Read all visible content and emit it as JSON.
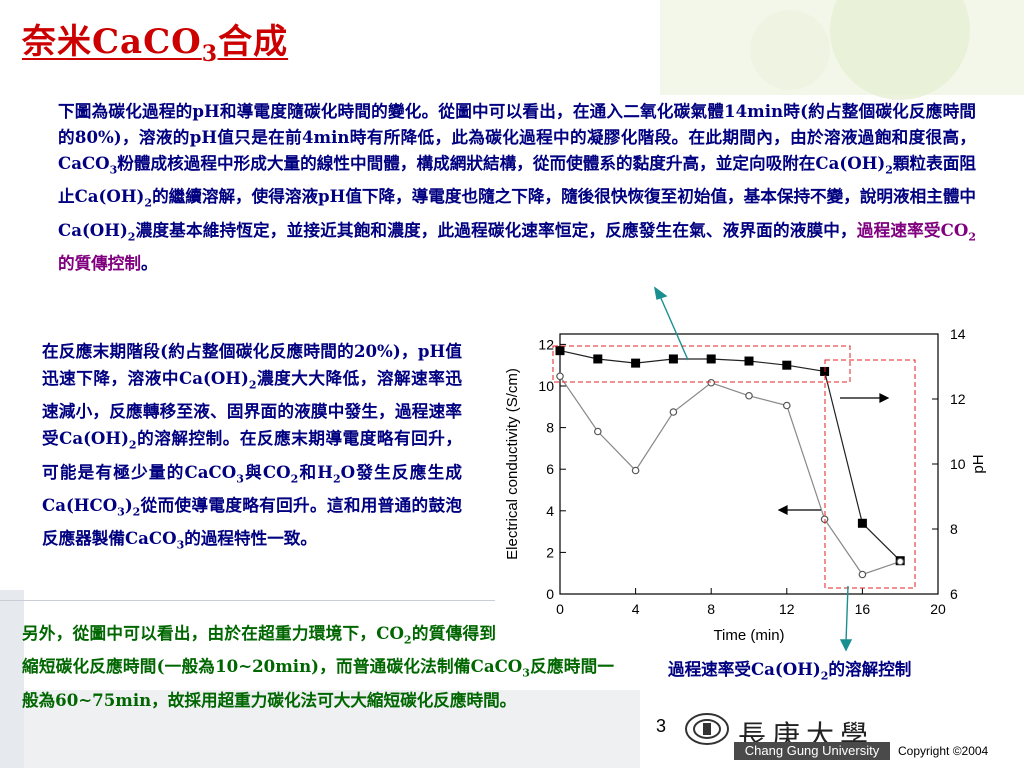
{
  "title": {
    "main": "奈米CaCO",
    "sub": "3",
    "tail": "合成"
  },
  "para1": {
    "s1": "下圖為碳化過程的pH和導電度隨碳化時間的變化。從圖中可以看出，在通入二氧化碳氣體14min時(約占整個碳化反應時間的80%)，溶液的pH值只是在前4min時有所降低，此為碳化過程中的凝膠化階段。在此期間內，由於溶液過飽和度很高，CaCO",
    "s2": "3",
    "s3": "粉體成核過程中形成大量的線性中間體，構成網狀結構，從而使體系的黏度升高，並定向吸附在Ca(OH)",
    "s4": "2",
    "s5": "顆粒表面阻止Ca(OH)",
    "s6": "2",
    "s7": "的繼續溶解，使得溶液pH值下降，導電度也隨之下降，隨後很快恢復至初始值，基本保持不變，說明液相主體中Ca(OH)",
    "s8": "2",
    "s9": "濃度基本維持恆定，並接近其飽和濃度，此過程碳化速率恒定，反應發生在氣、液界面的液膜中，",
    "h1": "過程速率受CO",
    "h2": "2",
    "h3": "的質傳控制",
    "end": "。"
  },
  "para2": {
    "s1": "在反應末期階段(約占整個碳化反應時間的20%)，pH值迅速下降，溶液中Ca(OH)",
    "s2": "2",
    "s3": "濃度大大降低，溶解速率迅速減小，反應轉移至液、固界面的液膜中發生，過程速率受Ca(OH)",
    "s4": "2",
    "s5": "的溶解控制。在反應末期導電度略有回升，可能是有極少量的CaCO",
    "s6": "3",
    "s7": "與CO",
    "s8": "2",
    "s9": "和H",
    "s10": "2",
    "s11": "O發生反應生成Ca(HCO",
    "s12": "3",
    "s13": ")",
    "s14": "2",
    "s15": "從而使導電度略有回升。這和用普通的鼓泡反應器製備CaCO",
    "s16": "3",
    "s17": "的過程特性一致。"
  },
  "para3": {
    "s1": "另外，從圖中可以看出，由於在超重力環境下，CO",
    "s2": "2",
    "s3": "的質傳得到極大強化，大大縮短碳化反應時間(一般為10~20min)，而普通碳化法制備CaCO",
    "s4": "3",
    "s5": "反應時間一般為60~75min，故採用超重力碳化法可大大縮短碳化反應時間。"
  },
  "caption": {
    "s1": "過程速率受Ca(OH)",
    "s2": "2",
    "s3": "的溶解控制"
  },
  "chart_data": {
    "type": "line",
    "xlabel": "Time (min)",
    "ylabel": "Electrical conductivity (S/cm)",
    "y2label": "pH",
    "xlim": [
      0,
      20
    ],
    "ylim": [
      0,
      12.5
    ],
    "y2lim": [
      6,
      14
    ],
    "xticks": [
      "0",
      "4",
      "8",
      "12",
      "16",
      "20"
    ],
    "yticks": [
      "0",
      "2",
      "4",
      "6",
      "8",
      "10",
      "12"
    ],
    "y2ticks": [
      "6",
      "8",
      "10",
      "12",
      "14"
    ],
    "series": [
      {
        "marker": "filled-square",
        "axis": "left",
        "x": [
          0,
          2,
          4,
          6,
          8,
          10,
          12,
          14,
          16,
          18
        ],
        "values": [
          11.7,
          11.3,
          11.1,
          11.3,
          11.3,
          11.2,
          11.0,
          10.7,
          3.4,
          1.6
        ]
      },
      {
        "marker": "open-circle",
        "axis": "right",
        "x": [
          0,
          2,
          4,
          6,
          8,
          10,
          12,
          14,
          16,
          18
        ],
        "values": [
          12.7,
          11.0,
          9.8,
          11.6,
          12.5,
          12.1,
          11.8,
          8.3,
          6.6,
          7.0
        ]
      }
    ]
  },
  "page_number": "3",
  "university": {
    "cn": "長庚大學",
    "en": "Chang Gung University",
    "copyright": "Copyright ©2004"
  }
}
